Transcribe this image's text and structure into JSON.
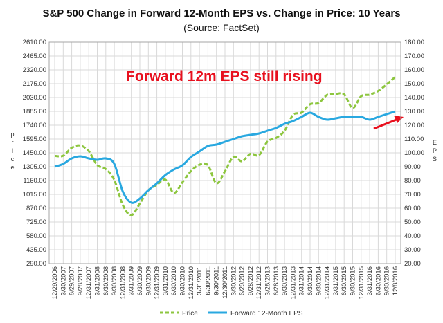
{
  "chart_data": {
    "type": "line",
    "title": "S&P 500 Change in Forward 12-Month EPS vs. Change in Price: 10 Years",
    "subtitle": "(Source: FactSet)",
    "ylabel_left": "Price",
    "ylabel_right": "EPS",
    "left_axis": {
      "min": 290,
      "max": 2610,
      "ticks": [
        "290.00",
        "435.00",
        "580.00",
        "725.00",
        "870.00",
        "1015.00",
        "1160.00",
        "1305.00",
        "1450.00",
        "1595.00",
        "1740.00",
        "1885.00",
        "2030.00",
        "2175.00",
        "2320.00",
        "2465.00",
        "2610.00"
      ]
    },
    "right_axis": {
      "min": 20,
      "max": 180,
      "ticks": [
        "20.00",
        "30.00",
        "40.00",
        "50.00",
        "60.00",
        "70.00",
        "80.00",
        "90.00",
        "100.00",
        "110.00",
        "120.00",
        "130.00",
        "140.00",
        "150.00",
        "160.00",
        "170.00",
        "180.00"
      ]
    },
    "x_tick_labels": [
      "12/29/2006",
      "3/30/2007",
      "6/29/2007",
      "9/28/2007",
      "12/31/2007",
      "3/31/2008",
      "6/30/2008",
      "9/30/2008",
      "12/31/2008",
      "3/31/2009",
      "6/30/2009",
      "9/30/2009",
      "12/31/2009",
      "3/31/2010",
      "6/30/2010",
      "9/30/2010",
      "12/31/2010",
      "3/31/2011",
      "6/30/2011",
      "9/30/2011",
      "12/30/2011",
      "3/30/2012",
      "6/29/2012",
      "9/28/2012",
      "12/31/2012",
      "3/28/2013",
      "6/28/2013",
      "9/30/2013",
      "12/31/2013",
      "3/31/2014",
      "6/30/2014",
      "9/30/2014",
      "12/31/2014",
      "3/31/2015",
      "6/30/2015",
      "9/30/2015",
      "12/31/2015",
      "3/31/2016",
      "6/30/2016",
      "9/30/2016",
      "12/8/2016"
    ],
    "annotation": "Forward 12m EPS still rising",
    "grid": true,
    "legend_position": "bottom",
    "series": [
      {
        "name": "Price",
        "axis": "left",
        "color": "#8dc63f",
        "style": "dashed",
        "x": [
          0,
          1,
          2,
          3,
          4,
          5,
          6,
          7,
          8,
          9,
          10,
          11,
          12,
          13,
          14,
          15,
          16,
          17,
          18,
          19,
          20,
          21,
          22,
          23,
          24,
          25,
          26,
          27,
          28,
          29,
          30,
          31,
          32,
          33,
          34,
          35,
          36,
          37,
          38,
          39,
          40
        ],
        "values": [
          1418,
          1420,
          1503,
          1527,
          1468,
          1322,
          1280,
          1166,
          903,
          797,
          919,
          1057,
          1115,
          1169,
          1030,
          1141,
          1258,
          1325,
          1320,
          1131,
          1257,
          1408,
          1362,
          1440,
          1426,
          1569,
          1606,
          1681,
          1848,
          1872,
          1960,
          1972,
          2058,
          2067,
          2063,
          1920,
          2044,
          2060,
          2099,
          2168,
          2246
        ]
      },
      {
        "name": "Forward 12-Month EPS",
        "axis": "right",
        "color": "#29a8e0",
        "style": "solid",
        "x": [
          0,
          1,
          2,
          3,
          4,
          5,
          6,
          7,
          8,
          9,
          10,
          11,
          12,
          13,
          14,
          15,
          16,
          17,
          18,
          19,
          20,
          21,
          22,
          23,
          24,
          25,
          26,
          27,
          28,
          29,
          30,
          31,
          32,
          33,
          34,
          35,
          36,
          37,
          38,
          39,
          40
        ],
        "values": [
          90,
          92,
          96,
          97.5,
          96,
          95,
          96,
          92,
          72,
          64,
          67,
          73,
          78,
          84,
          88,
          91,
          97,
          101,
          105,
          106,
          108,
          110,
          112,
          113,
          114,
          116,
          118,
          121,
          123,
          126,
          129,
          126,
          124,
          125,
          126,
          126,
          126,
          124,
          126,
          128,
          130
        ]
      }
    ]
  },
  "legend": {
    "price_label": "Price",
    "eps_label": "Forward 12-Month EPS"
  },
  "colors": {
    "price": "#8dc63f",
    "eps": "#29a8e0",
    "annotation": "#e8101e",
    "grid": "#d9d9d9"
  }
}
